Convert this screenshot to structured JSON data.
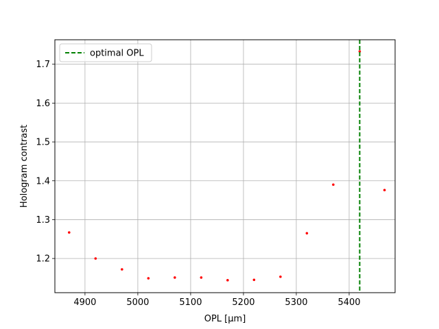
{
  "chart_data": {
    "type": "scatter",
    "xlabel": "OPL [μm]",
    "ylabel": "Hologram contrast",
    "xlim": [
      4843,
      5487
    ],
    "ylim": [
      1.112,
      1.763
    ],
    "xticks": [
      4900,
      5000,
      5100,
      5200,
      5300,
      5400
    ],
    "yticks": [
      1.2,
      1.3,
      1.4,
      1.5,
      1.6,
      1.7
    ],
    "grid": true,
    "legend_position": "top-left",
    "series": [
      {
        "color": "#ff0000",
        "points": [
          {
            "x": 4870,
            "y": 1.267
          },
          {
            "x": 4920,
            "y": 1.2
          },
          {
            "x": 4970,
            "y": 1.172
          },
          {
            "x": 5020,
            "y": 1.149
          },
          {
            "x": 5070,
            "y": 1.151
          },
          {
            "x": 5120,
            "y": 1.151
          },
          {
            "x": 5170,
            "y": 1.144
          },
          {
            "x": 5220,
            "y": 1.145
          },
          {
            "x": 5270,
            "y": 1.153
          },
          {
            "x": 5320,
            "y": 1.265
          },
          {
            "x": 5370,
            "y": 1.39
          },
          {
            "x": 5420,
            "y": 1.733
          },
          {
            "x": 5467,
            "y": 1.376
          }
        ]
      }
    ],
    "vlines": [
      {
        "name": "optimal OPL",
        "x": 5420,
        "color": "#008000",
        "style": "dashed"
      }
    ]
  }
}
